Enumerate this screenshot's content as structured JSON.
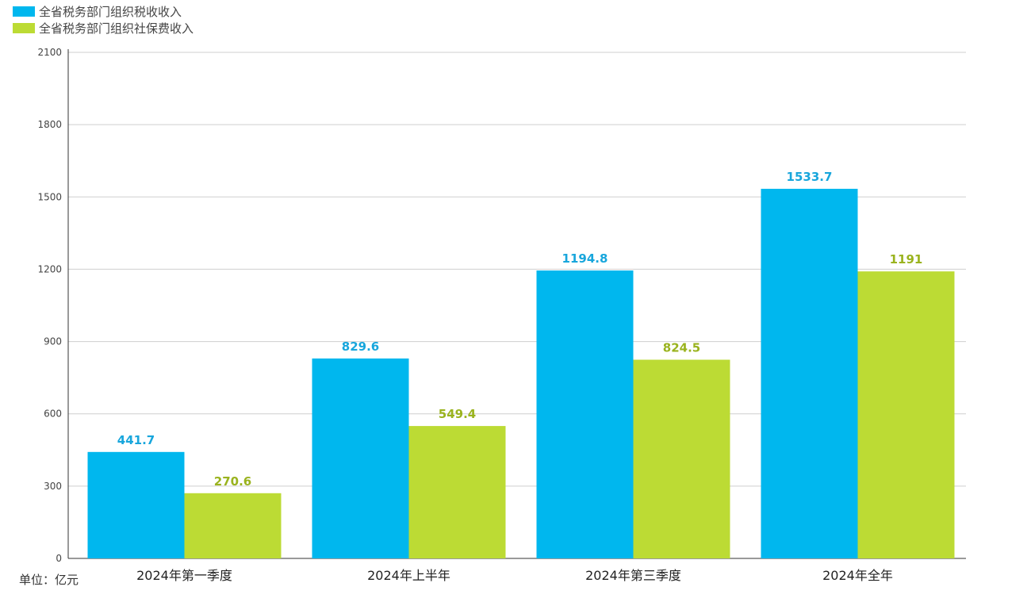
{
  "chart_data": {
    "type": "bar",
    "categories": [
      "2024年第一季度",
      "2024年上半年",
      "2024年第三季度",
      "2024年全年"
    ],
    "series": [
      {
        "name": "全省税务部门组织税收收入",
        "color": "#00b7ee",
        "label_color": "#18a6dc",
        "values": [
          441.7,
          829.6,
          1194.8,
          1533.7
        ]
      },
      {
        "name": "全省税务部门组织社保费收入",
        "color": "#bcdb34",
        "label_color": "#9ab31e",
        "values": [
          270.6,
          549.4,
          824.5,
          1191
        ]
      }
    ],
    "yticks": [
      "0",
      "300",
      "600",
      "900",
      "1200",
      "1500",
      "1800",
      "2100"
    ],
    "ylim": [
      0,
      2100
    ],
    "grid": true,
    "legend_position": "top-left",
    "unit_label": "单位：亿元"
  }
}
